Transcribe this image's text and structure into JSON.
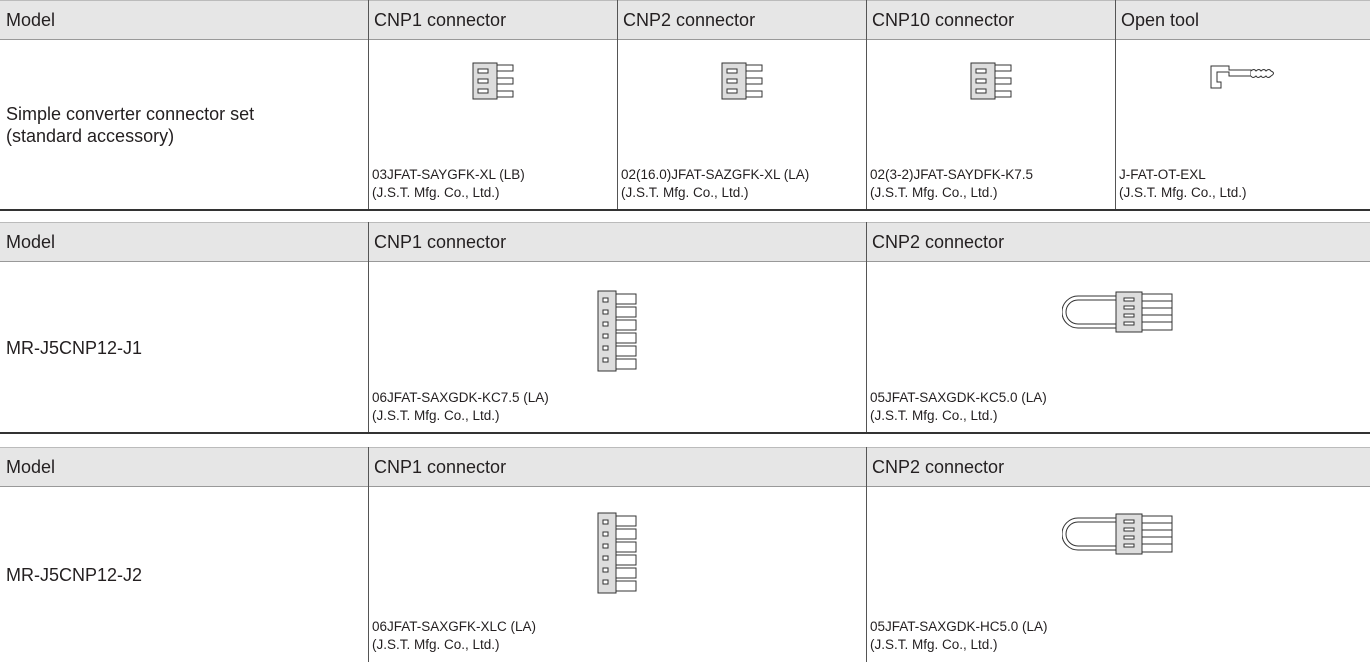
{
  "tables": [
    {
      "header": [
        "Model",
        "CNP1 connector",
        "CNP2 connector",
        "CNP10 connector",
        "Open tool"
      ],
      "model": [
        "Simple converter connector set",
        "(standard accessory)"
      ],
      "parts": [
        {
          "part": "03JFAT-SAYGFK-XL  (LB)",
          "maker": "(J.S.T. Mfg. Co., Ltd.)"
        },
        {
          "part": "02(16.0)JFAT-SAZGFK-XL  (LA)",
          "maker": "(J.S.T. Mfg. Co., Ltd.)"
        },
        {
          "part": "02(3-2)JFAT-SAYDFK-K7.5",
          "maker": "(J.S.T. Mfg. Co., Ltd.)"
        },
        {
          "part": "J-FAT-OT-EXL",
          "maker": "(J.S.T. Mfg. Co., Ltd.)"
        }
      ]
    },
    {
      "header": [
        "Model",
        "CNP1 connector",
        "CNP2 connector"
      ],
      "model": [
        "MR-J5CNP12-J1"
      ],
      "parts": [
        {
          "part": "06JFAT-SAXGDK-KC7.5  (LA)",
          "maker": "(J.S.T. Mfg. Co., Ltd.)"
        },
        {
          "part": "05JFAT-SAXGDK-KC5.0  (LA)",
          "maker": "(J.S.T. Mfg. Co., Ltd.)"
        }
      ]
    },
    {
      "header": [
        "Model",
        "CNP1 connector",
        "CNP2 connector"
      ],
      "model": [
        "MR-J5CNP12-J2"
      ],
      "parts": [
        {
          "part": "06JFAT-SAXGFK-XLC  (LA)",
          "maker": "(J.S.T. Mfg. Co., Ltd.)"
        },
        {
          "part": "05JFAT-SAXGDK-HC5.0  (LA)",
          "maker": "(J.S.T. Mfg. Co., Ltd.)"
        }
      ]
    }
  ]
}
